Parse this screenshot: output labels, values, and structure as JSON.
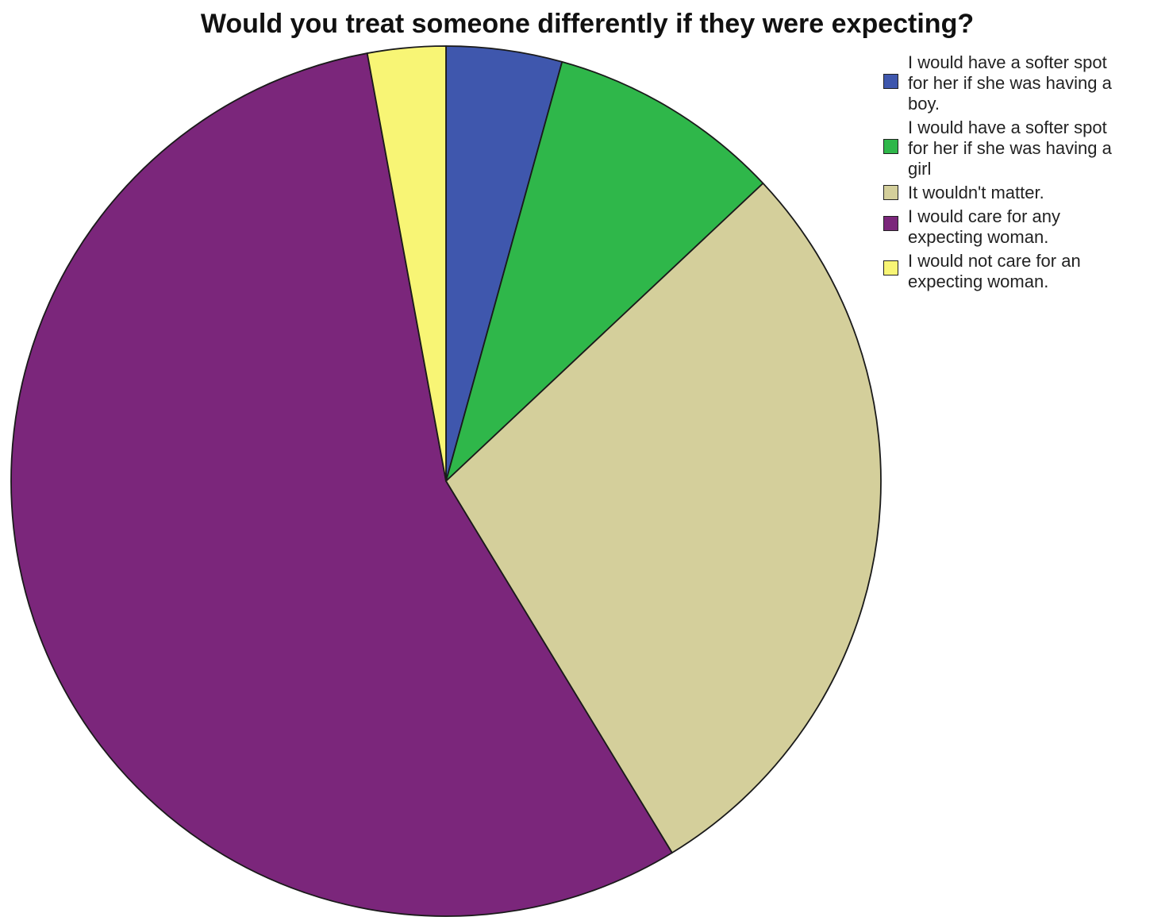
{
  "chart_data": {
    "type": "pie",
    "title": "Would you treat someone differently if they were expecting?",
    "categories": [
      "I would have a softer spot for her if she was having a boy.",
      "I would have a softer spot for her if she was having a girl",
      "It wouldn't matter.",
      "I would care for any expecting woman.",
      "I would not care for an expecting woman."
    ],
    "values": [
      4.3,
      8.7,
      28.3,
      55.8,
      2.9
    ],
    "colors": [
      "#3f57ad",
      "#2fb74a",
      "#d4cf9b",
      "#7b267b",
      "#f8f575"
    ],
    "legend": {
      "position": "top-right",
      "labels": [
        "I would have a softer spot\nfor her if she was having a\nboy.",
        "I would have a softer spot\nfor her if she was having a\ngirl",
        "It wouldn't matter.",
        "I would care for any\nexpecting woman.",
        "I would not care for an\nexpecting woman."
      ]
    }
  }
}
